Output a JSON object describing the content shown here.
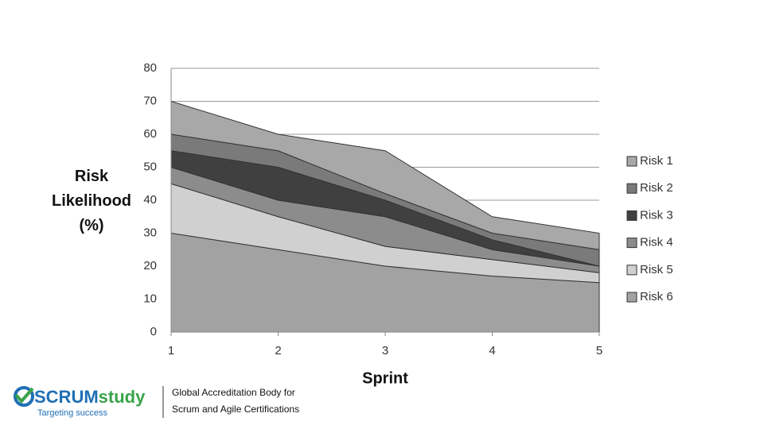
{
  "chart_data": {
    "type": "stacked_area",
    "y_label": "Risk Likelihood (%)",
    "x_label": "Sprint",
    "x": [
      1,
      2,
      3,
      4,
      5
    ],
    "xlim": [
      1,
      5
    ],
    "xticks": [
      1,
      2,
      3,
      4,
      5
    ],
    "ylim": [
      0,
      80
    ],
    "yticks": [
      0,
      10,
      20,
      30,
      40,
      50,
      60,
      70,
      80
    ],
    "grid": true,
    "legend": "right",
    "series": [
      {
        "name": "Risk 1",
        "color": "#a8a8a8",
        "values": [
          10,
          5,
          13,
          5,
          5
        ]
      },
      {
        "name": "Risk 2",
        "color": "#7a7a7a",
        "values": [
          5,
          5,
          2,
          2,
          5
        ]
      },
      {
        "name": "Risk 3",
        "color": "#404040",
        "values": [
          5,
          10,
          5,
          3,
          0
        ]
      },
      {
        "name": "Risk 4",
        "color": "#8c8c8c",
        "values": [
          5,
          5,
          9,
          3,
          2
        ]
      },
      {
        "name": "Risk 5",
        "color": "#d0d0d0",
        "values": [
          15,
          10,
          6,
          5,
          3
        ]
      },
      {
        "name": "Risk 6",
        "color": "#a2a2a2",
        "values": [
          30,
          25,
          20,
          17,
          15
        ]
      }
    ]
  },
  "footer": {
    "brand_a": "SCRUM",
    "brand_b": "study",
    "tagline": "Targeting success",
    "line1": "Global Accreditation Body for",
    "line2": "Scrum and Agile Certifications"
  }
}
